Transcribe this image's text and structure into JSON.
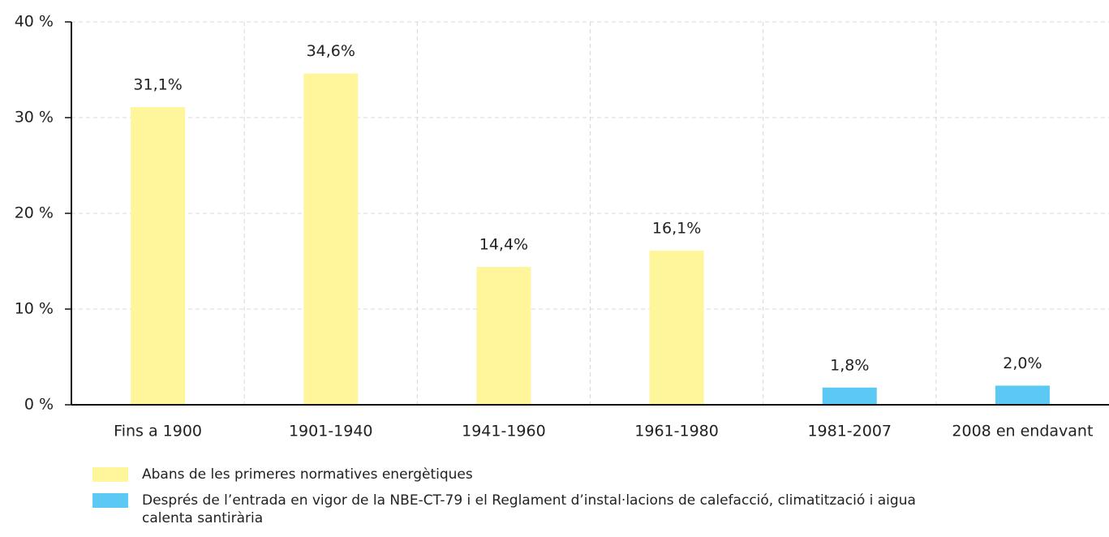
{
  "chart_data": {
    "type": "bar",
    "categories": [
      "Fins a 1900",
      "1901-1940",
      "1941-1960",
      "1961-1980",
      "1981-2007",
      "2008 en endavant"
    ],
    "series": [
      {
        "name": "Abans de les primeres normatives energètiques",
        "color": "#fff59b",
        "values": [
          31.1,
          34.6,
          14.4,
          16.1,
          null,
          null
        ],
        "value_labels": [
          "31,1%",
          "34,6%",
          "14,4%",
          "16,1%",
          null,
          null
        ]
      },
      {
        "name": "Després de l’entrada en vigor de la NBE-CT-79 i el Reglament d’instal·lacions de calefacció, climatització i aigua calenta santirària",
        "color": "#5cc9f5",
        "values": [
          null,
          null,
          null,
          null,
          1.8,
          2.0
        ],
        "value_labels": [
          null,
          null,
          null,
          null,
          "1,8%",
          "2,0%"
        ]
      }
    ],
    "ylim": [
      0,
      40
    ],
    "yticks": [
      {
        "value": 0,
        "label": "0 %"
      },
      {
        "value": 10,
        "label": "10 %"
      },
      {
        "value": 20,
        "label": "20 %"
      },
      {
        "value": 30,
        "label": "30 %"
      },
      {
        "value": 40,
        "label": "40 %"
      }
    ],
    "grid": true
  }
}
